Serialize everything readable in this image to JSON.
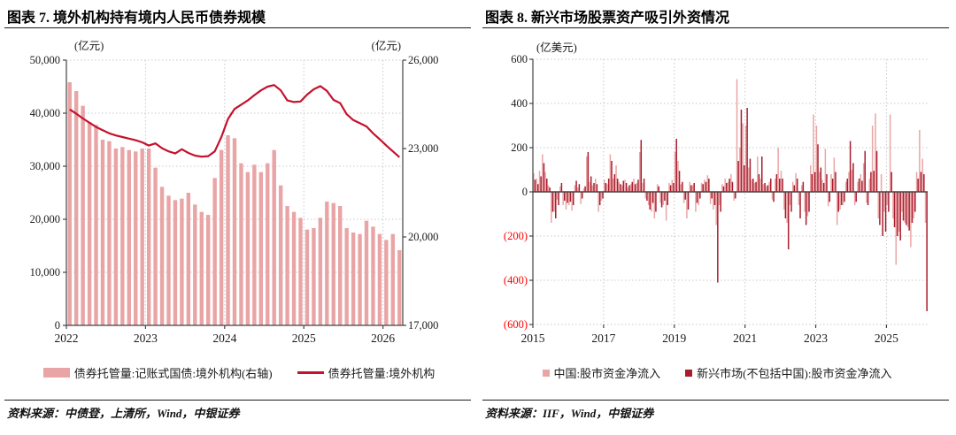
{
  "colors": {
    "china_pink": "#E9A5A6",
    "em_dark_red": "#A91D2E",
    "line_red": "#C5122D",
    "negative_label": "#FF0000",
    "grid": "#C9C9C9",
    "axis": "#444444",
    "text": "#1A1A1A"
  },
  "figure7": {
    "title": "图表 7. 境外机构持有境内人民币债券规模",
    "left_unit": "(亿元)",
    "right_unit": "(亿元)",
    "source": "资料来源：中债登，上清所，Wind，中银证券",
    "chart_data": {
      "type": "bar+line",
      "x_freq": "monthly",
      "x_start": "2022-01",
      "x_ticks": [
        2022,
        2023,
        2024,
        2025,
        2026
      ],
      "left_axis": {
        "min": 0,
        "max": 50000,
        "step": 10000
      },
      "right_axis": {
        "min": 17000,
        "max": 26000,
        "step": 3000
      },
      "grid": "dotted",
      "legend_position": "bottom",
      "bars": {
        "name": "债券托管量:记账式国债:境外机构(右轴)",
        "axis": "right",
        "values": [
          25250,
          24950,
          24450,
          23900,
          23800,
          23300,
          23250,
          23000,
          23050,
          22950,
          22900,
          23000,
          23000,
          22350,
          21700,
          21400,
          21250,
          21300,
          21500,
          21100,
          20850,
          20750,
          22000,
          22950,
          23450,
          23350,
          22500,
          22200,
          22450,
          22200,
          22500,
          22950,
          21750,
          21050,
          20850,
          20650,
          20250,
          20300,
          20650,
          21200,
          21150,
          21050,
          20300,
          20150,
          20100,
          20550,
          20350,
          20100,
          19900,
          20100,
          19550
        ]
      },
      "line": {
        "name": "债券托管量:境外机构",
        "axis": "left",
        "values": [
          40700,
          39900,
          39000,
          38200,
          37400,
          36800,
          36200,
          35800,
          35500,
          35200,
          34900,
          34500,
          33900,
          34300,
          33400,
          32800,
          32400,
          33200,
          32500,
          32000,
          31800,
          31900,
          32800,
          35500,
          38900,
          40800,
          41600,
          42400,
          43400,
          44300,
          45000,
          45300,
          44300,
          42400,
          42100,
          42200,
          43500,
          44500,
          45100,
          44200,
          42500,
          41900,
          39800,
          38700,
          38100,
          37500,
          36200,
          35100,
          33900,
          32800,
          31700
        ]
      }
    }
  },
  "figure8": {
    "title": "图表 8. 新兴市场股票资产吸引外资情况",
    "unit": "(亿美元)",
    "source": "资料来源：IIF，Wind，中银证券",
    "chart_data": {
      "type": "grouped-bar",
      "x_freq": "monthly",
      "x_start": "2015-01",
      "x_ticks": [
        2015,
        2017,
        2019,
        2021,
        2023,
        2025
      ],
      "y_axis": {
        "min": -600,
        "max": 600,
        "step": 200
      },
      "grid": "dotted",
      "legend_position": "bottom",
      "series": [
        {
          "name": "中国:股市资金净流入",
          "values": [
            85,
            60,
            95,
            170,
            90,
            30,
            -140,
            -90,
            -35,
            25,
            -60,
            -80,
            -60,
            -85,
            30,
            20,
            -55,
            15,
            160,
            45,
            30,
            60,
            -90,
            -40,
            55,
            35,
            170,
            60,
            120,
            45,
            30,
            55,
            20,
            35,
            60,
            40,
            180,
            40,
            -30,
            -60,
            -90,
            -120,
            35,
            -50,
            -60,
            -130,
            40,
            55,
            180,
            140,
            35,
            -50,
            -120,
            45,
            30,
            -90,
            -60,
            40,
            55,
            75,
            -55,
            -80,
            -150,
            -60,
            35,
            60,
            45,
            80,
            -40,
            510,
            200,
            310,
            300,
            110,
            55,
            40,
            160,
            60,
            35,
            25,
            45,
            -35,
            60,
            200,
            95,
            -80,
            -140,
            -60,
            45,
            85,
            -60,
            30,
            -90,
            -110,
            120,
            350,
            300,
            90,
            55,
            195,
            -65,
            80,
            155,
            -150,
            -80,
            -60,
            45,
            90,
            100,
            -60,
            45,
            80,
            130,
            -50,
            60,
            300,
            355,
            -120,
            80,
            -90,
            -60,
            350,
            -120,
            -330,
            -180,
            -90,
            -140,
            -160,
            -250,
            -120,
            90,
            280,
            150,
            -140
          ]
        },
        {
          "name": "新兴市场(不包括中国):股市资金净流入",
          "values": [
            55,
            35,
            70,
            130,
            60,
            20,
            -90,
            -120,
            -60,
            40,
            -40,
            -50,
            -45,
            -60,
            50,
            35,
            -30,
            25,
            180,
            70,
            40,
            35,
            -60,
            -30,
            40,
            60,
            140,
            80,
            60,
            35,
            50,
            40,
            30,
            45,
            35,
            55,
            235,
            60,
            -40,
            -80,
            -50,
            -90,
            25,
            -70,
            -40,
            -60,
            30,
            40,
            240,
            95,
            45,
            -35,
            -80,
            30,
            40,
            -50,
            -30,
            35,
            45,
            60,
            -30,
            -60,
            -410,
            -90,
            25,
            40,
            60,
            45,
            -30,
            140,
            372,
            120,
            380,
            150,
            60,
            45,
            80,
            160,
            40,
            30,
            60,
            -45,
            80,
            60,
            60,
            -120,
            -260,
            -90,
            30,
            60,
            -120,
            45,
            -150,
            -90,
            80,
            90,
            215,
            110,
            40,
            80,
            -45,
            60,
            90,
            -90,
            -60,
            -45,
            60,
            230,
            130,
            -45,
            60,
            50,
            185,
            -60,
            90,
            95,
            185,
            -150,
            -200,
            -180,
            -90,
            90,
            -160,
            -200,
            -220,
            -130,
            -150,
            -175,
            -140,
            -90,
            60,
            90,
            80,
            -540
          ]
        }
      ]
    }
  }
}
